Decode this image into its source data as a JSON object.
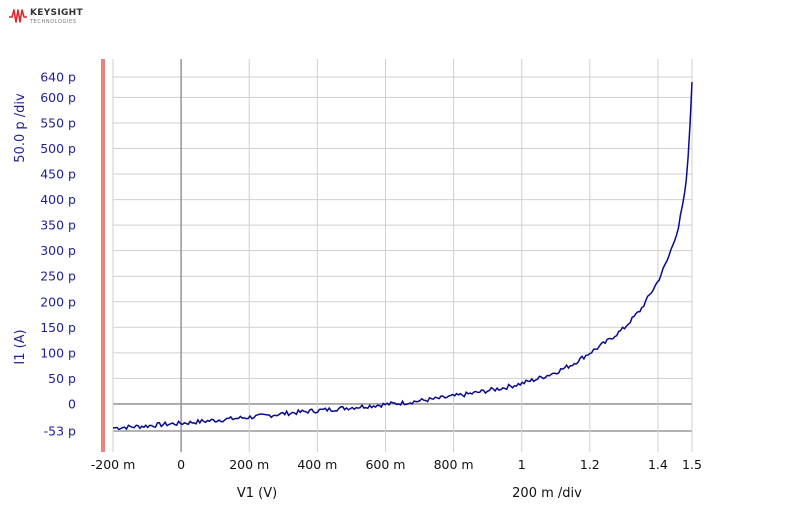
{
  "logo": {
    "name": "KEYSIGHT",
    "subtitle": "TECHNOLOGIES",
    "color": "#e0272b"
  },
  "chart_data": {
    "type": "line",
    "xlabel": "V1 (V)",
    "ylabel": "I1 (A)",
    "x_scale_label": "200 m /div",
    "y_scale_label": "50.0 p /div",
    "xlim": [
      -0.2,
      1.5
    ],
    "ylim": [
      -53,
      640
    ],
    "grid": true,
    "colors": {
      "trace": "#0a0a8c",
      "grid": "#cfcfcf",
      "axis_bar": "#e8847e",
      "marker_line": "#9a9a9a"
    },
    "x_ticks": [
      {
        "v": -0.2,
        "label": "-200 m"
      },
      {
        "v": 0,
        "label": "0"
      },
      {
        "v": 0.2,
        "label": "200 m"
      },
      {
        "v": 0.4,
        "label": "400 m"
      },
      {
        "v": 0.6,
        "label": "600 m"
      },
      {
        "v": 0.8,
        "label": "800 m"
      },
      {
        "v": 1.0,
        "label": "1"
      },
      {
        "v": 1.2,
        "label": "1.2"
      },
      {
        "v": 1.4,
        "label": "1.4"
      },
      {
        "v": 1.5,
        "label": "1.5"
      }
    ],
    "y_ticks": [
      {
        "v": 640,
        "label": "640 p"
      },
      {
        "v": 600,
        "label": "600 p"
      },
      {
        "v": 550,
        "label": "550 p"
      },
      {
        "v": 500,
        "label": "500 p"
      },
      {
        "v": 450,
        "label": "450 p"
      },
      {
        "v": 400,
        "label": "400 p"
      },
      {
        "v": 350,
        "label": "350 p"
      },
      {
        "v": 300,
        "label": "300 p"
      },
      {
        "v": 250,
        "label": "250 p"
      },
      {
        "v": 200,
        "label": "200 p"
      },
      {
        "v": 150,
        "label": "150 p"
      },
      {
        "v": 100,
        "label": "100 p"
      },
      {
        "v": 50,
        "label": "50 p"
      },
      {
        "v": 0,
        "label": "0"
      },
      {
        "v": -53,
        "label": "-53 p"
      }
    ],
    "series": [
      {
        "x": [
          -0.2,
          -0.15,
          -0.1,
          -0.05,
          0.0,
          0.05,
          0.1,
          0.15,
          0.2,
          0.25,
          0.3,
          0.35,
          0.4,
          0.45,
          0.5,
          0.55,
          0.6,
          0.65,
          0.7,
          0.75,
          0.8,
          0.85,
          0.9,
          0.95,
          1.0,
          1.05,
          1.1,
          1.15,
          1.2,
          1.25,
          1.3,
          1.35,
          1.4,
          1.43,
          1.46,
          1.48,
          1.49,
          1.5
        ],
        "y": [
          -47,
          -45,
          -43,
          -40,
          -38,
          -35,
          -32,
          -29,
          -26,
          -23,
          -19,
          -16,
          -13,
          -10,
          -7,
          -4,
          -1,
          2,
          6,
          10,
          15,
          20,
          26,
          32,
          40,
          50,
          62,
          78,
          100,
          122,
          148,
          185,
          240,
          285,
          345,
          415,
          490,
          630
        ]
      }
    ]
  }
}
